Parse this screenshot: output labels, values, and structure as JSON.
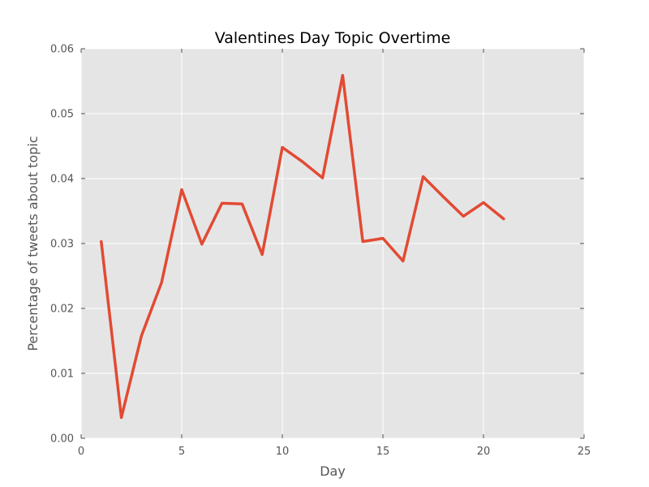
{
  "chart_data": {
    "type": "line",
    "title": "Valentines Day Topic Overtime",
    "xlabel": "Day",
    "ylabel": "Percentage of tweets about topic",
    "xlim": [
      0,
      25
    ],
    "ylim": [
      0,
      0.06
    ],
    "x_ticks": [
      "0",
      "5",
      "10",
      "15",
      "20",
      "25"
    ],
    "y_ticks": [
      "0.00",
      "0.01",
      "0.02",
      "0.03",
      "0.04",
      "0.05",
      "0.06"
    ],
    "grid": true,
    "series": [
      {
        "color": "#e24a33",
        "x": [
          1,
          2,
          3,
          4,
          5,
          6,
          7,
          8,
          9,
          10,
          11,
          12,
          13,
          14,
          15,
          16,
          17,
          18,
          19,
          20,
          21
        ],
        "y": [
          0.0303,
          0.0032,
          0.0158,
          0.024,
          0.0383,
          0.0299,
          0.0362,
          0.0361,
          0.0283,
          0.0448,
          0.0426,
          0.0401,
          0.0559,
          0.0303,
          0.0308,
          0.0273,
          0.0403,
          0.0372,
          0.0342,
          0.0363,
          0.0338
        ]
      }
    ]
  }
}
